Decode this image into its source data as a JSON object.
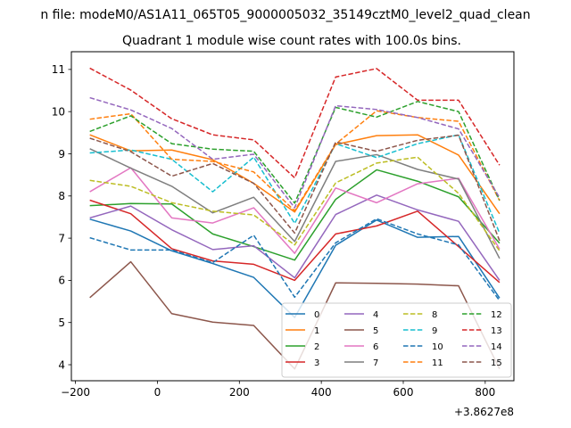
{
  "chart_data": {
    "type": "line",
    "suptitle": "n file: modeM0/AS1A11_065T05_9000005032_35149cztM0_level2_quad_clean",
    "title": "Quadrant 1 module wise count rates with 100.0s bins.",
    "xlabel": "",
    "ylabel": "",
    "x_offset_label": "+3.8627e8",
    "xlim": [
      -210,
      870
    ],
    "ylim": [
      3.62,
      11.42
    ],
    "x_ticks": [
      -200,
      0,
      200,
      400,
      600,
      800
    ],
    "x_tick_labels": [
      "−200",
      "0",
      "200",
      "400",
      "600",
      "800"
    ],
    "y_ticks": [
      4,
      5,
      6,
      7,
      8,
      9,
      10,
      11
    ],
    "y_tick_labels": [
      "4",
      "5",
      "6",
      "7",
      "8",
      "9",
      "10",
      "11"
    ],
    "legend_position": "lower-right",
    "x": [
      -165,
      -65,
      35,
      135,
      235,
      335,
      435,
      535,
      635,
      735,
      835
    ],
    "series": [
      {
        "name": "0",
        "color": "#1f77b4",
        "style": "solid",
        "values": [
          7.45,
          7.17,
          6.7,
          6.4,
          6.07,
          5.12,
          6.83,
          7.43,
          7.02,
          7.04,
          5.58
        ]
      },
      {
        "name": "1",
        "color": "#ff7f0e",
        "style": "solid",
        "values": [
          9.45,
          9.07,
          9.09,
          8.86,
          8.3,
          7.62,
          9.22,
          9.43,
          9.45,
          8.97,
          7.58
        ]
      },
      {
        "name": "2",
        "color": "#2ca02c",
        "style": "solid",
        "values": [
          7.77,
          7.82,
          7.81,
          7.1,
          6.8,
          6.48,
          7.92,
          8.62,
          8.35,
          7.98,
          6.88
        ]
      },
      {
        "name": "3",
        "color": "#d62728",
        "style": "solid",
        "values": [
          7.9,
          7.58,
          6.75,
          6.46,
          6.38,
          6.0,
          7.1,
          7.29,
          7.64,
          6.8,
          5.95
        ]
      },
      {
        "name": "4",
        "color": "#9467bd",
        "style": "solid",
        "values": [
          7.48,
          7.76,
          7.2,
          6.73,
          6.82,
          6.06,
          7.56,
          8.02,
          7.67,
          7.4,
          6.0
        ]
      },
      {
        "name": "5",
        "color": "#8c564b",
        "style": "solid",
        "values": [
          5.59,
          6.44,
          5.21,
          5.01,
          4.93,
          3.9,
          5.94,
          5.93,
          5.91,
          5.87,
          3.9
        ]
      },
      {
        "name": "6",
        "color": "#e377c2",
        "style": "solid",
        "values": [
          8.1,
          8.67,
          7.48,
          7.36,
          7.72,
          6.64,
          8.19,
          7.84,
          8.29,
          8.42,
          6.74
        ]
      },
      {
        "name": "7",
        "color": "#7f7f7f",
        "style": "solid",
        "values": [
          9.12,
          8.66,
          8.23,
          7.6,
          7.97,
          6.92,
          8.82,
          8.98,
          8.63,
          8.4,
          6.52
        ]
      },
      {
        "name": "8",
        "color": "#bcbd22",
        "style": "dashed",
        "values": [
          8.37,
          8.23,
          7.84,
          7.64,
          7.55,
          6.84,
          8.31,
          8.78,
          8.92,
          8.06,
          6.7
        ]
      },
      {
        "name": "9",
        "color": "#17becf",
        "style": "dashed",
        "values": [
          9.02,
          9.09,
          8.87,
          8.1,
          8.92,
          7.35,
          9.24,
          8.91,
          9.24,
          9.45,
          7.12
        ]
      },
      {
        "name": "10",
        "color": "#1f77b4",
        "style": "dashed",
        "values": [
          7.01,
          6.72,
          6.72,
          6.42,
          7.07,
          5.6,
          6.89,
          7.46,
          7.1,
          6.84,
          5.52
        ]
      },
      {
        "name": "11",
        "color": "#ff7f0e",
        "style": "dashed",
        "values": [
          9.82,
          9.95,
          8.87,
          8.82,
          8.57,
          7.65,
          9.23,
          10.02,
          9.86,
          9.77,
          7.89
        ]
      },
      {
        "name": "12",
        "color": "#2ca02c",
        "style": "dashed",
        "values": [
          9.53,
          9.9,
          9.24,
          9.11,
          9.06,
          7.83,
          10.1,
          9.87,
          10.24,
          10.0,
          7.9
        ]
      },
      {
        "name": "13",
        "color": "#d62728",
        "style": "dashed",
        "values": [
          11.03,
          10.51,
          9.83,
          9.45,
          9.33,
          8.43,
          10.82,
          11.02,
          10.27,
          10.27,
          8.73
        ]
      },
      {
        "name": "14",
        "color": "#9467bd",
        "style": "dashed",
        "values": [
          10.33,
          10.04,
          9.6,
          8.87,
          8.99,
          7.72,
          10.14,
          10.05,
          9.86,
          9.59,
          7.96
        ]
      },
      {
        "name": "15",
        "color": "#8c564b",
        "style": "dashed",
        "values": [
          9.37,
          9.05,
          8.47,
          8.77,
          8.3,
          7.12,
          9.28,
          9.06,
          9.32,
          9.44,
          6.94
        ]
      }
    ]
  }
}
